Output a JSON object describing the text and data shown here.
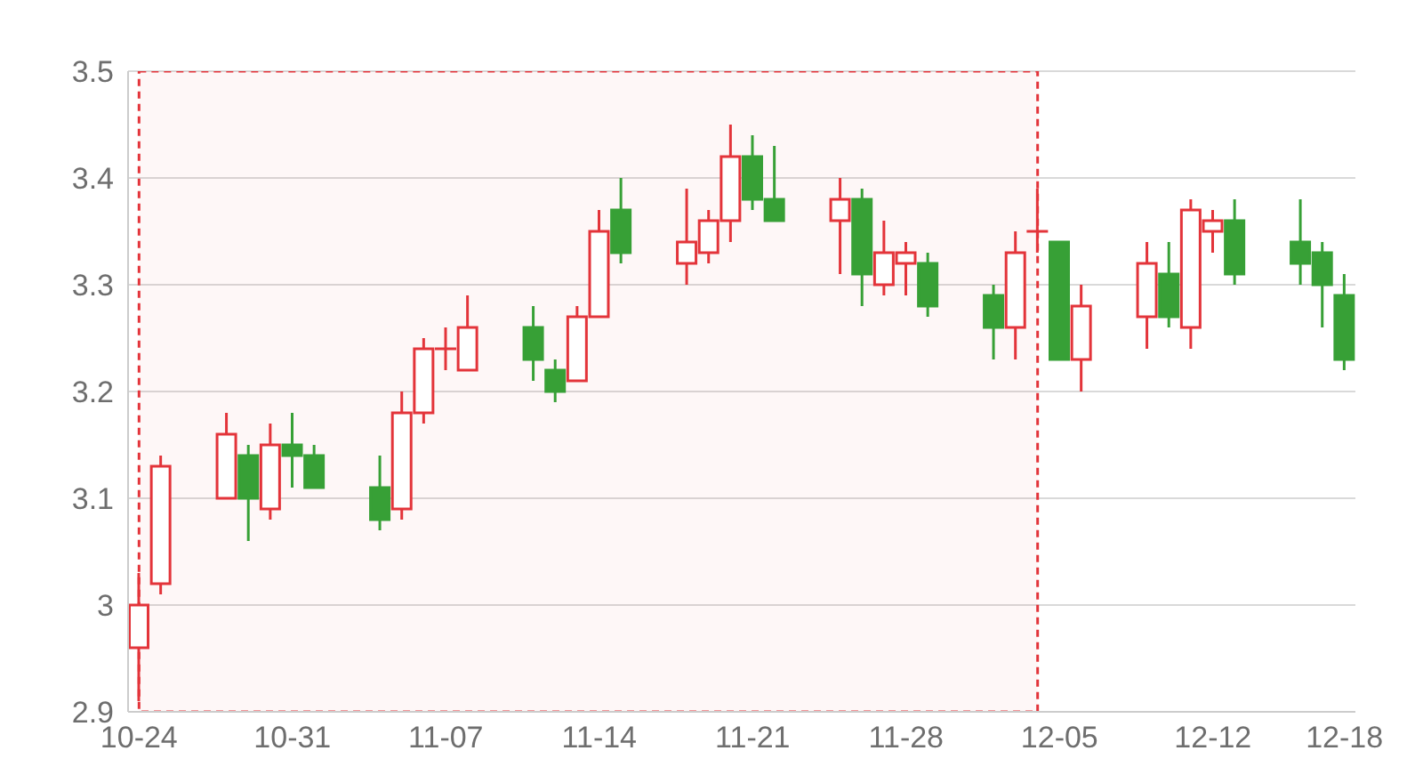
{
  "chart_data": {
    "type": "candlestick",
    "x": [
      "--10-24",
      "--10-25",
      "--10-28",
      "--10-29",
      "--10-30",
      "--10-31",
      "--11-01",
      "--11-04",
      "--11-05",
      "--11-06",
      "--11-07",
      "--11-08",
      "--11-11",
      "--11-12",
      "--11-13",
      "--11-14",
      "--11-15",
      "--11-18",
      "--11-19",
      "--11-20",
      "--11-21",
      "--11-22",
      "--11-25",
      "--11-26",
      "--11-27",
      "--11-28",
      "--11-29",
      "--12-02",
      "--12-03",
      "--12-04",
      "--12-05",
      "--12-06",
      "--12-09",
      "--12-10",
      "--12-11",
      "--12-12",
      "--12-13",
      "--12-16",
      "--12-17",
      "--12-18"
    ],
    "ohlc": [
      [
        2.96,
        3.03,
        2.91,
        3.0
      ],
      [
        3.02,
        3.14,
        3.01,
        3.13
      ],
      [
        3.1,
        3.18,
        3.1,
        3.16
      ],
      [
        3.14,
        3.15,
        3.06,
        3.1
      ],
      [
        3.09,
        3.17,
        3.08,
        3.15
      ],
      [
        3.15,
        3.18,
        3.11,
        3.14
      ],
      [
        3.14,
        3.15,
        3.11,
        3.11
      ],
      [
        3.11,
        3.14,
        3.07,
        3.08
      ],
      [
        3.09,
        3.2,
        3.08,
        3.18
      ],
      [
        3.18,
        3.25,
        3.17,
        3.24
      ],
      [
        3.24,
        3.26,
        3.22,
        3.24
      ],
      [
        3.22,
        3.29,
        3.22,
        3.26
      ],
      [
        3.26,
        3.28,
        3.21,
        3.23
      ],
      [
        3.22,
        3.23,
        3.19,
        3.2
      ],
      [
        3.21,
        3.28,
        3.21,
        3.27
      ],
      [
        3.27,
        3.37,
        3.27,
        3.35
      ],
      [
        3.37,
        3.4,
        3.32,
        3.33
      ],
      [
        3.32,
        3.39,
        3.3,
        3.34
      ],
      [
        3.33,
        3.37,
        3.32,
        3.36
      ],
      [
        3.36,
        3.45,
        3.34,
        3.42
      ],
      [
        3.42,
        3.44,
        3.37,
        3.38
      ],
      [
        3.38,
        3.43,
        3.36,
        3.36
      ],
      [
        3.36,
        3.4,
        3.31,
        3.38
      ],
      [
        3.38,
        3.39,
        3.28,
        3.31
      ],
      [
        3.3,
        3.36,
        3.29,
        3.33
      ],
      [
        3.32,
        3.34,
        3.29,
        3.33
      ],
      [
        3.32,
        3.33,
        3.27,
        3.28
      ],
      [
        3.29,
        3.3,
        3.23,
        3.26
      ],
      [
        3.26,
        3.35,
        3.23,
        3.33
      ],
      [
        3.35,
        3.39,
        3.33,
        3.35
      ],
      [
        3.34,
        3.34,
        3.23,
        3.23
      ],
      [
        3.23,
        3.3,
        3.2,
        3.28
      ],
      [
        3.27,
        3.34,
        3.24,
        3.32
      ],
      [
        3.31,
        3.34,
        3.26,
        3.27
      ],
      [
        3.26,
        3.38,
        3.24,
        3.37
      ],
      [
        3.35,
        3.37,
        3.33,
        3.36
      ],
      [
        3.36,
        3.38,
        3.3,
        3.31
      ],
      [
        3.34,
        3.38,
        3.3,
        3.32
      ],
      [
        3.33,
        3.34,
        3.26,
        3.3
      ],
      [
        3.29,
        3.31,
        3.22,
        3.23
      ]
    ],
    "colors": [
      "#e3343a",
      "#e3343a",
      "#e3343a",
      "#37a036",
      "#e3343a",
      "#37a036",
      "#37a036",
      "#37a036",
      "#e3343a",
      "#e3343a",
      "#e3343a",
      "#e3343a",
      "#37a036",
      "#37a036",
      "#e3343a",
      "#e3343a",
      "#37a036",
      "#e3343a",
      "#e3343a",
      "#e3343a",
      "#37a036",
      "#37a036",
      "#e3343a",
      "#37a036",
      "#e3343a",
      "#e3343a",
      "#37a036",
      "#37a036",
      "#e3343a",
      "#e3343a",
      "#37a036",
      "#e3343a",
      "#e3343a",
      "#37a036",
      "#e3343a",
      "#e3343a",
      "#37a036",
      "#37a036",
      "#37a036",
      "#37a036"
    ],
    "xticks": [
      {
        "value": "--10-24",
        "label": "10-24"
      },
      {
        "value": "--10-31",
        "label": "10-31"
      },
      {
        "value": "--11-07",
        "label": "11-07"
      },
      {
        "value": "--11-14",
        "label": "11-14"
      },
      {
        "value": "--11-21",
        "label": "11-21"
      },
      {
        "value": "--11-28",
        "label": "11-28"
      },
      {
        "value": "--12-05",
        "label": "12-05"
      },
      {
        "value": "--12-12",
        "label": "12-12"
      },
      {
        "value": "--12-18",
        "label": "12-18"
      }
    ],
    "ylim": [
      2.9,
      3.5
    ],
    "yticks": [
      2.9,
      3,
      3.1,
      3.2,
      3.3,
      3.4,
      3.5
    ],
    "bands": [
      {
        "axis": "x",
        "from": "--10-24",
        "to": "--12-04",
        "color": "#e3343a"
      }
    ],
    "xlim": [
      "--10-23T12:00",
      "--12-18T12:00"
    ],
    "grid": "y"
  }
}
